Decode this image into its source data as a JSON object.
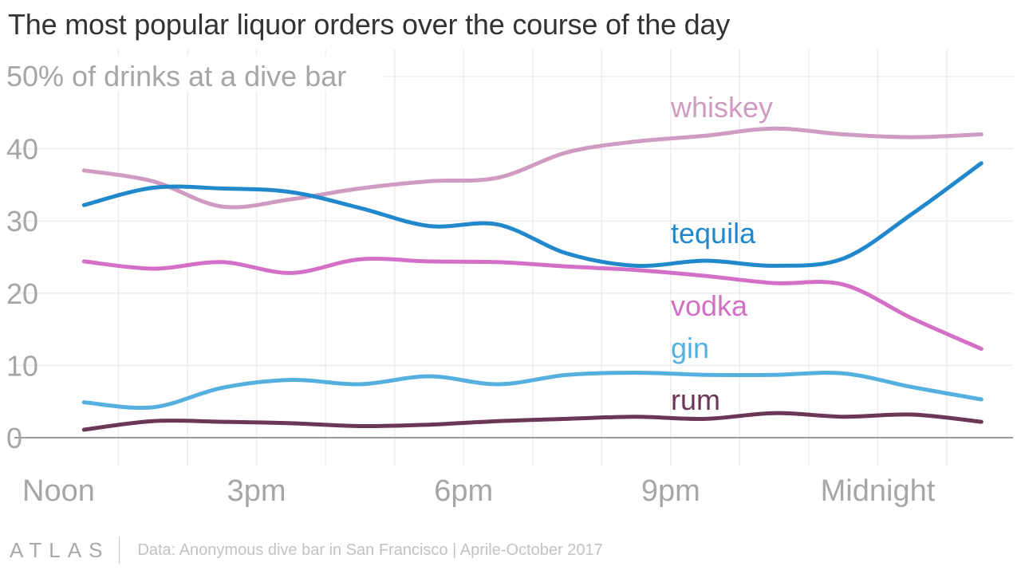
{
  "title": "The most popular liquor orders over the course of the day",
  "footer": {
    "logo": "ATLAS",
    "source": "Data: Anonymous dive bar in San Francisco | Aprile-October 2017"
  },
  "chart_data": {
    "type": "line",
    "title": "The most popular liquor orders over the course of the day",
    "ylabel": "50% of drinks at a dive bar",
    "ylim": [
      0,
      50
    ],
    "yticks": [
      0,
      10,
      20,
      30,
      40
    ],
    "y_top_label": "50% of drinks at a dive bar",
    "x_tick_labels": [
      "Noon",
      "3pm",
      "6pm",
      "9pm",
      "Midnight"
    ],
    "x_tick_hours": [
      12,
      15,
      18,
      21,
      24
    ],
    "x_gridline_hours": [
      13,
      14,
      15,
      16,
      17,
      18,
      19,
      20,
      21,
      22,
      23,
      24,
      25
    ],
    "grid": true,
    "x": [
      12.5,
      13.5,
      14.5,
      15.5,
      16.5,
      17.5,
      18.5,
      19.5,
      20.5,
      21.5,
      22.5,
      23.5,
      24.5,
      25.5
    ],
    "series": [
      {
        "name": "whiskey",
        "color": "#cf9bc0",
        "values": [
          37,
          35.5,
          32,
          33,
          34.5,
          35.5,
          36,
          39.5,
          41,
          41.8,
          42.8,
          42,
          41.6,
          42
        ]
      },
      {
        "name": "tequila",
        "color": "#2288cc",
        "values": [
          32.2,
          34.6,
          34.5,
          34,
          31.8,
          29.3,
          29.5,
          25.5,
          23.8,
          24.5,
          23.8,
          24.8,
          31,
          38
        ]
      },
      {
        "name": "vodka",
        "color": "#d36fc6",
        "values": [
          24.4,
          23.4,
          24.3,
          22.8,
          24.7,
          24.4,
          24.3,
          23.7,
          23.2,
          22.4,
          21.4,
          21.2,
          16.5,
          12.3
        ]
      },
      {
        "name": "gin",
        "color": "#55b0e0",
        "values": [
          4.9,
          4.2,
          6.9,
          8,
          7.4,
          8.5,
          7.4,
          8.7,
          9,
          8.7,
          8.7,
          8.9,
          7,
          5.3
        ]
      },
      {
        "name": "rum",
        "color": "#6b3658",
        "values": [
          1.1,
          2.3,
          2.2,
          2,
          1.6,
          1.8,
          2.3,
          2.6,
          2.9,
          2.6,
          3.4,
          2.9,
          3.2,
          2.2
        ]
      }
    ]
  }
}
